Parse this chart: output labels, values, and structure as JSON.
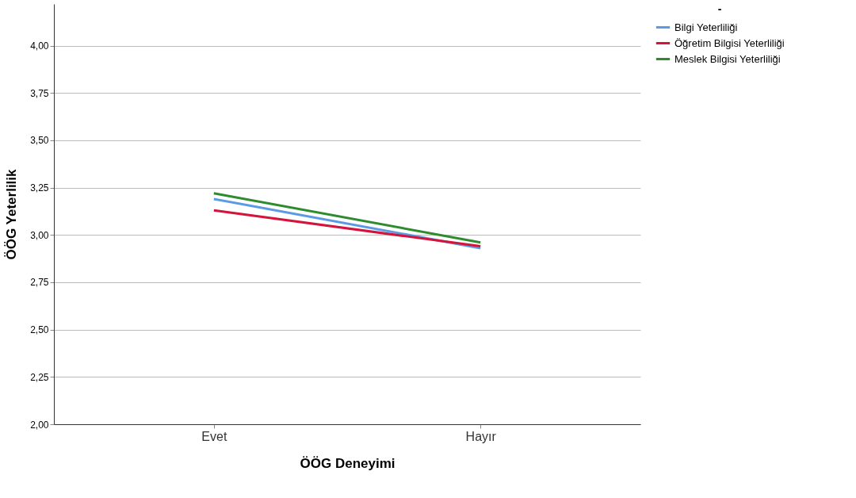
{
  "chart_data": {
    "type": "line",
    "xlabel": "ÖÖG Deneyimi",
    "ylabel": "ÖÖG Yeterlilik",
    "legend_title": "-",
    "categories": [
      "Evet",
      "Hayır"
    ],
    "series": [
      {
        "name": "Bilgi Yeterliliği",
        "color": "#5b9be6",
        "values": [
          3.19,
          2.93
        ]
      },
      {
        "name": "Öğretim Bilgisi Yeterliliği",
        "color": "#d5143c",
        "values": [
          3.13,
          2.94
        ]
      },
      {
        "name": "Meslek Bilgisi Yeterliliği",
        "color": "#2e8b2e",
        "values": [
          3.22,
          2.96
        ]
      }
    ],
    "ylim": [
      2.0,
      4.22
    ],
    "yticks": [
      {
        "value": 2.0,
        "label": "2,00"
      },
      {
        "value": 2.25,
        "label": "2,25"
      },
      {
        "value": 2.5,
        "label": "2,50"
      },
      {
        "value": 2.75,
        "label": "2,75"
      },
      {
        "value": 3.0,
        "label": "3,00"
      },
      {
        "value": 3.25,
        "label": "3,25"
      },
      {
        "value": 3.5,
        "label": "3,50"
      },
      {
        "value": 3.75,
        "label": "3,75"
      },
      {
        "value": 4.0,
        "label": "4,00"
      }
    ],
    "grid": "y",
    "legend": "top right",
    "marker": "none",
    "line_style": "solid"
  }
}
